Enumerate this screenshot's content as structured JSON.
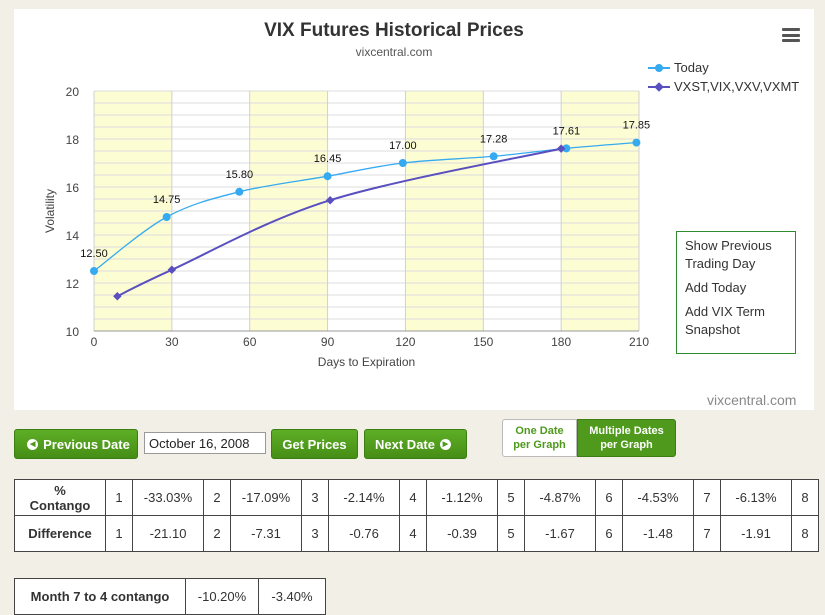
{
  "chart_data": {
    "type": "line",
    "title": "VIX Futures Historical Prices",
    "subtitle": "vixcentral.com",
    "xlabel": "Days to Expiration",
    "ylabel": "Volatility",
    "xlim": [
      0,
      210
    ],
    "ylim": [
      10,
      20
    ],
    "xticks": [
      0,
      30,
      60,
      90,
      120,
      150,
      180,
      210
    ],
    "yticks": [
      10,
      12,
      14,
      16,
      18,
      20
    ],
    "shaded_bands": [
      [
        0,
        30
      ],
      [
        60,
        90
      ],
      [
        120,
        150
      ],
      [
        180,
        210
      ]
    ],
    "legend_position": "top-right",
    "series": [
      {
        "name": "Today",
        "color": "#35aaf0",
        "marker": "circle",
        "x": [
          0,
          28,
          56,
          90,
          119,
          154,
          182,
          209
        ],
        "y": [
          12.5,
          14.75,
          15.8,
          16.45,
          17.0,
          17.28,
          17.61,
          17.85
        ],
        "labels": [
          "12.50",
          "14.75",
          "15.80",
          "16.45",
          "17.00",
          "17.28",
          "17.61",
          "17.85"
        ]
      },
      {
        "name": "VXST,VIX,VXV,VXMT",
        "color": "#5a4fbf",
        "marker": "diamond",
        "x": [
          9,
          30,
          91,
          180
        ],
        "y": [
          11.45,
          12.55,
          15.45,
          17.6
        ]
      }
    ]
  },
  "menu": {
    "items": [
      "Show Previous Trading Day",
      "Add Today",
      "Add VIX Term Snapshot"
    ],
    "line1": "Show Previous",
    "line2": "Trading Day",
    "add_today": "Add Today",
    "add_vix_1": "Add VIX Term",
    "add_vix_2": "Snapshot"
  },
  "watermark": "vixcentral.com",
  "icons": {
    "menu": "hamburger-icon",
    "prev": "circle-left-icon",
    "next": "circle-right-icon"
  },
  "controls": {
    "prev_label": "Previous Date",
    "date_value": "October 16, 2008",
    "get_prices_label": "Get Prices",
    "next_label": "Next Date",
    "one_date_1": "One Date",
    "one_date_2": "per Graph",
    "multi_1": "Multiple Dates",
    "multi_2": "per Graph"
  },
  "contango_table": {
    "row1_label_1": "%",
    "row1_label_2": "Contango",
    "row2_label": "Difference",
    "months": [
      "1",
      "2",
      "3",
      "4",
      "5",
      "6",
      "7",
      "8"
    ],
    "contango": [
      "-33.03%",
      "-17.09%",
      "-2.14%",
      "-1.12%",
      "-4.87%",
      "-4.53%",
      "-6.13%"
    ],
    "difference": [
      "-21.10",
      "-7.31",
      "-0.76",
      "-0.39",
      "-1.67",
      "-1.48",
      "-1.91"
    ]
  },
  "month_table": {
    "label": "Month 7 to 4 contango",
    "values": [
      "-10.20%",
      "-3.40%"
    ]
  }
}
